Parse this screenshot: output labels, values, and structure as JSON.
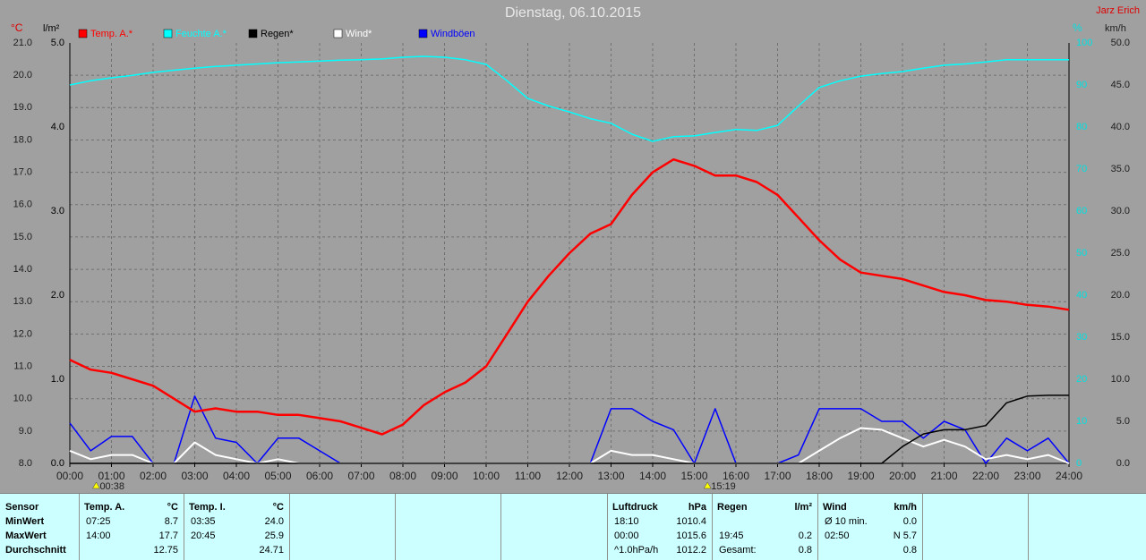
{
  "chart_data": {
    "type": "line",
    "title": "Dienstag, 06.10.2015",
    "author": "Jarz Erich",
    "ylabel": "°C",
    "y2label": "%",
    "y3label": "l/m²",
    "y4label": "km/h",
    "grid": true,
    "x": [
      0,
      0.5,
      1,
      1.5,
      2,
      2.5,
      3,
      3.5,
      4,
      4.5,
      5,
      5.5,
      6,
      6.5,
      7,
      7.5,
      8,
      8.5,
      9,
      9.5,
      10,
      10.5,
      11,
      11.5,
      12,
      12.5,
      13,
      13.5,
      14,
      14.5,
      15,
      15.5,
      16,
      16.5,
      17,
      17.5,
      18,
      18.5,
      19,
      19.5,
      20,
      20.5,
      21,
      21.5,
      22,
      22.5,
      23,
      23.5,
      24
    ],
    "xlim": [
      0,
      24
    ],
    "xticks": [
      {
        "value": 0,
        "label": "00:00"
      },
      {
        "value": 1,
        "label": "01:00"
      },
      {
        "value": 2,
        "label": "02:00"
      },
      {
        "value": 3,
        "label": "03:00"
      },
      {
        "value": 4,
        "label": "04:00"
      },
      {
        "value": 5,
        "label": "05:00"
      },
      {
        "value": 6,
        "label": "06:00"
      },
      {
        "value": 7,
        "label": "07:00"
      },
      {
        "value": 8,
        "label": "08:00"
      },
      {
        "value": 9,
        "label": "09:00"
      },
      {
        "value": 10,
        "label": "10:00"
      },
      {
        "value": 11,
        "label": "11:00"
      },
      {
        "value": 12,
        "label": "12:00"
      },
      {
        "value": 13,
        "label": "13:00"
      },
      {
        "value": 14,
        "label": "14:00"
      },
      {
        "value": 15,
        "label": "15:00"
      },
      {
        "value": 16,
        "label": "16:00"
      },
      {
        "value": 17,
        "label": "17:00"
      },
      {
        "value": 18,
        "label": "18:00"
      },
      {
        "value": 19,
        "label": "19:00"
      },
      {
        "value": 20,
        "label": "20:00"
      },
      {
        "value": 21,
        "label": "21:00"
      },
      {
        "value": 22,
        "label": "22:00"
      },
      {
        "value": 23,
        "label": "23:00"
      },
      {
        "value": 24,
        "label": "24:00"
      }
    ],
    "ylim": [
      8,
      21
    ],
    "yticks": [
      {
        "value": 8,
        "label": "8.0"
      },
      {
        "value": 9,
        "label": "9.0"
      },
      {
        "value": 10,
        "label": "10.0"
      },
      {
        "value": 11,
        "label": "11.0"
      },
      {
        "value": 12,
        "label": "12.0"
      },
      {
        "value": 13,
        "label": "13.0"
      },
      {
        "value": 14,
        "label": "14.0"
      },
      {
        "value": 15,
        "label": "15.0"
      },
      {
        "value": 16,
        "label": "16.0"
      },
      {
        "value": 17,
        "label": "17.0"
      },
      {
        "value": 18,
        "label": "18.0"
      },
      {
        "value": 19,
        "label": "19.0"
      },
      {
        "value": 20,
        "label": "20.0"
      },
      {
        "value": 21,
        "label": "21.0"
      }
    ],
    "y2lim": [
      0,
      100
    ],
    "y2ticks": [
      0,
      10,
      20,
      30,
      40,
      50,
      60,
      70,
      80,
      90,
      100
    ],
    "y3lim": [
      0,
      5
    ],
    "y3ticks": [
      {
        "value": 0,
        "label": "0.0"
      },
      {
        "value": 1,
        "label": "1.0"
      },
      {
        "value": 2,
        "label": "2.0"
      },
      {
        "value": 3,
        "label": "3.0"
      },
      {
        "value": 4,
        "label": "4.0"
      },
      {
        "value": 5,
        "label": "5.0"
      }
    ],
    "y4lim": [
      0,
      50
    ],
    "y4ticks": [
      {
        "value": 0,
        "label": "0.0"
      },
      {
        "value": 5,
        "label": "5.0"
      },
      {
        "value": 10,
        "label": "10.0"
      },
      {
        "value": 15,
        "label": "15.0"
      },
      {
        "value": 20,
        "label": "20.0"
      },
      {
        "value": 25,
        "label": "25.0"
      },
      {
        "value": 30,
        "label": "30.0"
      },
      {
        "value": 35,
        "label": "35.0"
      },
      {
        "value": 40,
        "label": "40.0"
      },
      {
        "value": 45,
        "label": "45.0"
      },
      {
        "value": 50,
        "label": "50.0"
      }
    ],
    "series": [
      {
        "name": "Temp. A.*",
        "color": "#ff0000",
        "axis": "y",
        "values": [
          11.2,
          10.9,
          10.8,
          10.6,
          10.4,
          10.0,
          9.6,
          9.7,
          9.6,
          9.6,
          9.5,
          9.5,
          9.4,
          9.3,
          9.1,
          8.9,
          9.2,
          9.8,
          10.2,
          10.5,
          11.0,
          12.0,
          13.0,
          13.8,
          14.5,
          15.1,
          15.4,
          16.3,
          17.0,
          17.4,
          17.2,
          16.9,
          16.9,
          16.7,
          16.3,
          15.6,
          14.9,
          14.3,
          13.9,
          13.8,
          13.7,
          13.5,
          13.3,
          13.2,
          13.05,
          13.0,
          12.9,
          12.85,
          12.75
        ]
      },
      {
        "name": "Feuchte A.*",
        "color": "#00ffff",
        "axis": "y2",
        "values": [
          90,
          91,
          91.7,
          92.3,
          93,
          93.5,
          94,
          94.4,
          94.7,
          95,
          95.3,
          95.5,
          95.7,
          95.9,
          96,
          96.2,
          96.6,
          96.8,
          96.6,
          96,
          94.9,
          91,
          86.8,
          85,
          83.6,
          82,
          80.9,
          78.3,
          76.6,
          77.7,
          77.9,
          78.7,
          79.4,
          79.2,
          80.4,
          85,
          89.4,
          91,
          92.1,
          92.7,
          93.2,
          94,
          94.7,
          95,
          95.5,
          96,
          96,
          96,
          96
        ]
      },
      {
        "name": "Regen*",
        "color": "#000000",
        "axis": "y3",
        "values": [
          0,
          0,
          0,
          0,
          0,
          0,
          0,
          0,
          0,
          0,
          0,
          0,
          0,
          0,
          0,
          0,
          0,
          0,
          0,
          0,
          0,
          0,
          0,
          0,
          0,
          0,
          0,
          0,
          0,
          0,
          0,
          0,
          0,
          0,
          0,
          0,
          0,
          0,
          0,
          0,
          0.2,
          0.35,
          0.4,
          0.4,
          0.45,
          0.72,
          0.8,
          0.81,
          0.81
        ]
      },
      {
        "name": "Wind*",
        "color": "#ffffff",
        "axis": "y4",
        "values": [
          1.5,
          0.5,
          1,
          1,
          0,
          0,
          2.5,
          1,
          0.5,
          0,
          0.5,
          0,
          0,
          0,
          0,
          0,
          0,
          0,
          0,
          0,
          0,
          0,
          0,
          0,
          0,
          0,
          1.5,
          1,
          1,
          0.5,
          0,
          0,
          0,
          0,
          0,
          0,
          1.5,
          3,
          4.2,
          4,
          3,
          2,
          2.8,
          2,
          0.5,
          1,
          0.5,
          1,
          0
        ]
      },
      {
        "name": "Windböen",
        "color": "#0000ff",
        "axis": "y4",
        "values": [
          4.8,
          1.5,
          3.2,
          3.2,
          0,
          0,
          8,
          3,
          2.5,
          0,
          3,
          3,
          1.5,
          0,
          0,
          0,
          0,
          0,
          0,
          0,
          0,
          0,
          0,
          0,
          0,
          0,
          6.5,
          6.5,
          5,
          4,
          0,
          6.5,
          0,
          0,
          0,
          1,
          6.5,
          6.5,
          6.5,
          5,
          5,
          3,
          5,
          4,
          0,
          3,
          1.5,
          3,
          0
        ]
      }
    ],
    "annotations": [
      "00:38",
      "15:19"
    ]
  },
  "table": {
    "blocks": [
      {
        "header": [
          "Sensor"
        ],
        "rows": [
          "MinWert",
          "MaxWert",
          "Durchschnitt"
        ]
      },
      {
        "header": [
          "Temp. A.",
          "°C"
        ],
        "rows": [
          {
            "time": "07:25",
            "value": "8.7"
          },
          {
            "time": "14:00",
            "value": "17.7"
          },
          {
            "value": "12.75"
          }
        ]
      },
      {
        "header": [
          "Temp. I.",
          "°C"
        ],
        "rows": [
          {
            "time": "03:35",
            "value": "24.0"
          },
          {
            "time": "20:45",
            "value": "25.9"
          },
          {
            "value": "24.71"
          }
        ]
      },
      {
        "header": [
          "Luftdruck",
          "hPa"
        ],
        "rows": [
          {
            "time": "18:10",
            "value": "1010.4"
          },
          {
            "time": "00:00",
            "value": "1015.6"
          },
          {
            "time": "^1.0hPa/h",
            "value": "1012.2"
          }
        ]
      },
      {
        "header": [
          "Regen",
          "l/m²"
        ],
        "rows": [
          null,
          {
            "time": "19:45",
            "value": "0.2"
          },
          {
            "time": "Gesamt:",
            "value": "0.8"
          }
        ]
      },
      {
        "header": [
          "Wind",
          "km/h"
        ],
        "rows": [
          {
            "time": "Ø 10 min.",
            "value": "0.0"
          },
          {
            "time": "02:50",
            "value": "N 5.7"
          },
          {
            "value": "0.8"
          }
        ]
      }
    ]
  }
}
